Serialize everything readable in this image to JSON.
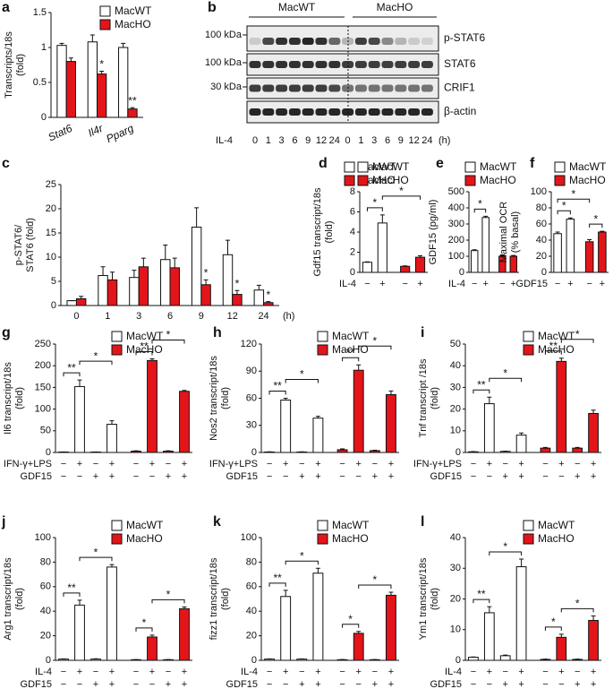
{
  "chart_data": [
    {
      "type": "bar",
      "panel": "a",
      "ylabel": [
        "Transcripts/18s",
        "(fold)"
      ],
      "categories": [
        "Stat6",
        "Il4r",
        "Pparg"
      ],
      "series": [
        {
          "name": "MacWT",
          "color": "#ffffff",
          "values": [
            1.03,
            1.08,
            1.0
          ],
          "errors": [
            0.03,
            0.1,
            0.06
          ]
        },
        {
          "name": "MacHO",
          "color": "#e3151a",
          "values": [
            0.8,
            0.62,
            0.12
          ],
          "errors": [
            0.05,
            0.04,
            0.02
          ]
        }
      ],
      "ylim": [
        0,
        1.5
      ],
      "yticks": [
        0,
        0.5,
        1,
        1.5
      ],
      "annotations": [
        {
          "text": "*",
          "series": 1,
          "index": 1
        },
        {
          "text": "**",
          "series": 1,
          "index": 2
        }
      ]
    },
    {
      "type": "bar",
      "panel": "c",
      "ylabel": [
        "p-STAT6/",
        "STAT6 (fold)"
      ],
      "categories": [
        "0",
        "1",
        "3",
        "6",
        "9",
        "12",
        "24"
      ],
      "xlabel": "(h)",
      "series": [
        {
          "name": "MacWT",
          "color": "#ffffff",
          "values": [
            1,
            6.2,
            5.8,
            9.5,
            16.2,
            10.5,
            3.2
          ],
          "errors": [
            0,
            1.8,
            1.5,
            3,
            4,
            3,
            1
          ]
        },
        {
          "name": "MacHO",
          "color": "#e3151a",
          "values": [
            1.4,
            5.3,
            8,
            7.8,
            4.3,
            2.3,
            0.6
          ],
          "errors": [
            0.5,
            1.6,
            1.8,
            2,
            1,
            0.8,
            0.2
          ]
        }
      ],
      "ylim": [
        0,
        25
      ],
      "yticks": [
        0,
        5,
        10,
        15,
        20,
        25
      ],
      "annotations": [
        {
          "text": "*",
          "series": 1,
          "index": 4
        },
        {
          "text": "*",
          "series": 1,
          "index": 5
        },
        {
          "text": "*",
          "series": 1,
          "index": 6
        }
      ]
    },
    {
      "type": "bar",
      "panel": "d",
      "ylabel": [
        "Gdf15 transcript/18s",
        "(fold)"
      ],
      "series": [
        {
          "name": "MacWT",
          "color": "#ffffff",
          "values": [
            1.0,
            4.9
          ],
          "errors": [
            0.05,
            0.8
          ]
        },
        {
          "name": "MacHO",
          "color": "#e3151a",
          "values": [
            0.6,
            1.5
          ],
          "errors": [
            0.05,
            0.15
          ]
        }
      ],
      "ylim": [
        0,
        8
      ],
      "yticks": [
        0,
        2,
        4,
        6,
        8
      ],
      "rows": [
        {
          "label": "IL-4",
          "signs": [
            "−",
            "+",
            "−",
            "+"
          ]
        }
      ],
      "brackets": [
        {
          "text": "*",
          "from": 0,
          "to": 1
        },
        {
          "text": "*",
          "from": 1,
          "to": 3
        }
      ]
    },
    {
      "type": "bar",
      "panel": "e",
      "ylabel": [
        "GDF15 (pg/ml)"
      ],
      "series": [
        {
          "name": "MacWT",
          "color": "#ffffff",
          "values": [
            135,
            340
          ],
          "errors": [
            5,
            8
          ]
        },
        {
          "name": "MacHO",
          "color": "#e3151a",
          "values": [
            100,
            100
          ],
          "errors": [
            8,
            5
          ]
        }
      ],
      "ylim": [
        0,
        500
      ],
      "yticks": [
        0,
        100,
        200,
        300,
        400,
        500
      ],
      "rows": [
        {
          "label": "IL-4",
          "signs": [
            "−",
            "+",
            "−",
            "+"
          ]
        }
      ],
      "brackets": [
        {
          "text": "*",
          "from": 0,
          "to": 1
        }
      ]
    },
    {
      "type": "bar",
      "panel": "f",
      "ylabel": [
        "Maximal OCR",
        "(% basal)"
      ],
      "series": [
        {
          "name": "MacWT",
          "color": "#ffffff",
          "values": [
            48,
            66
          ],
          "errors": [
            2,
            1.5
          ]
        },
        {
          "name": "MacHO",
          "color": "#e3151a",
          "values": [
            38,
            50
          ],
          "errors": [
            2.5,
            1
          ]
        }
      ],
      "ylim": [
        0,
        100
      ],
      "yticks": [
        0,
        20,
        40,
        60,
        80,
        100
      ],
      "rows": [
        {
          "label": "GDF15",
          "signs": [
            "−",
            "+",
            "−",
            "+"
          ]
        }
      ],
      "brackets": [
        {
          "text": "*",
          "from": 0,
          "to": 1
        },
        {
          "text": "*",
          "from": 2,
          "to": 3
        },
        {
          "text": "*",
          "from": 0,
          "to": 2
        }
      ]
    },
    {
      "type": "bar",
      "panel": "g",
      "ylabel": [
        "Il6 transcript/18s",
        "(fold)"
      ],
      "series": [
        {
          "name": "MacWT",
          "color": "#ffffff",
          "values": [
            1,
            152,
            1,
            65
          ],
          "errors": [
            0.3,
            15,
            0.3,
            8
          ]
        },
        {
          "name": "MacHO",
          "color": "#e3151a",
          "values": [
            3,
            212,
            3,
            141
          ],
          "errors": [
            1,
            4,
            1,
            2
          ]
        }
      ],
      "ylim": [
        0,
        250
      ],
      "yticks": [
        0,
        50,
        100,
        150,
        200,
        250
      ],
      "rows": [
        {
          "label": "IFN-γ+LPS",
          "signs": [
            "−",
            "+",
            "−",
            "+",
            "−",
            "+",
            "−",
            "+"
          ]
        },
        {
          "label": "GDF15",
          "signs": [
            "−",
            "−",
            "+",
            "+",
            "−",
            "−",
            "+",
            "+"
          ]
        }
      ],
      "brackets": [
        {
          "text": "**",
          "from": 0,
          "to": 1
        },
        {
          "text": "*",
          "from": 1,
          "to": 3
        },
        {
          "text": "**",
          "from": 4,
          "to": 5
        },
        {
          "text": "*",
          "from": 5,
          "to": 7
        }
      ]
    },
    {
      "type": "bar",
      "panel": "h",
      "ylabel": [
        "Nos2 transcript/18s",
        "(fold)"
      ],
      "series": [
        {
          "name": "MacWT",
          "color": "#ffffff",
          "values": [
            0.5,
            58,
            0.5,
            38
          ],
          "errors": [
            0.2,
            2,
            0.2,
            2
          ]
        },
        {
          "name": "MacHO",
          "color": "#e3151a",
          "values": [
            3,
            91,
            2,
            64
          ],
          "errors": [
            1,
            6,
            0.5,
            4
          ]
        }
      ],
      "ylim": [
        0,
        120
      ],
      "yticks": [
        0,
        30,
        60,
        90,
        120
      ],
      "rows": [
        {
          "label": "IFN-γ+LPS",
          "signs": [
            "−",
            "+",
            "−",
            "+",
            "−",
            "+",
            "−",
            "+"
          ]
        },
        {
          "label": "GDF15",
          "signs": [
            "−",
            "−",
            "+",
            "+",
            "−",
            "−",
            "+",
            "+"
          ]
        }
      ],
      "brackets": [
        {
          "text": "**",
          "from": 0,
          "to": 1
        },
        {
          "text": "*",
          "from": 1,
          "to": 3
        },
        {
          "text": "**",
          "from": 4,
          "to": 5
        },
        {
          "text": "*",
          "from": 5,
          "to": 7
        }
      ]
    },
    {
      "type": "bar",
      "panel": "i",
      "ylabel": [
        "Tnf transcript /18s",
        "(fold)"
      ],
      "series": [
        {
          "name": "MacWT",
          "color": "#ffffff",
          "values": [
            0.3,
            22.5,
            0.5,
            8
          ],
          "errors": [
            0.1,
            3,
            0.1,
            1
          ]
        },
        {
          "name": "MacHO",
          "color": "#e3151a",
          "values": [
            2,
            42,
            2,
            18
          ],
          "errors": [
            0.3,
            1.5,
            0.3,
            1.5
          ]
        }
      ],
      "ylim": [
        0,
        50
      ],
      "yticks": [
        0,
        10,
        20,
        30,
        40,
        50
      ],
      "rows": [
        {
          "label": "IFN-γ+LPS",
          "signs": [
            "−",
            "+",
            "−",
            "+",
            "−",
            "+",
            "−",
            "+"
          ]
        },
        {
          "label": "GDF15",
          "signs": [
            "−",
            "−",
            "+",
            "+",
            "−",
            "−",
            "+",
            "+"
          ]
        }
      ],
      "brackets": [
        {
          "text": "**",
          "from": 0,
          "to": 1
        },
        {
          "text": "*",
          "from": 1,
          "to": 3
        },
        {
          "text": "**",
          "from": 4,
          "to": 5
        },
        {
          "text": "*",
          "from": 5,
          "to": 7
        }
      ]
    },
    {
      "type": "bar",
      "panel": "j",
      "ylabel": [
        "Arg1 transcript/18s",
        "(fold)"
      ],
      "series": [
        {
          "name": "MacWT",
          "color": "#ffffff",
          "values": [
            1,
            45,
            1,
            76
          ],
          "errors": [
            0.2,
            4,
            0.3,
            2
          ]
        },
        {
          "name": "MacHO",
          "color": "#e3151a",
          "values": [
            0.5,
            19,
            0.5,
            42
          ],
          "errors": [
            0.1,
            1.5,
            0.1,
            1.5
          ]
        }
      ],
      "ylim": [
        0,
        100
      ],
      "yticks": [
        0,
        20,
        40,
        60,
        80,
        100
      ],
      "rows": [
        {
          "label": "IL-4",
          "signs": [
            "−",
            "+",
            "−",
            "+",
            "−",
            "+",
            "−",
            "+"
          ]
        },
        {
          "label": "GDF15",
          "signs": [
            "−",
            "−",
            "+",
            "+",
            "−",
            "−",
            "+",
            "+"
          ]
        }
      ],
      "brackets": [
        {
          "text": "**",
          "from": 0,
          "to": 1
        },
        {
          "text": "*",
          "from": 1,
          "to": 3
        },
        {
          "text": "*",
          "from": 4,
          "to": 5
        },
        {
          "text": "*",
          "from": 5,
          "to": 7
        }
      ]
    },
    {
      "type": "bar",
      "panel": "k",
      "ylabel": [
        "fizz1 transcript/18s",
        "(fold)"
      ],
      "series": [
        {
          "name": "MacWT",
          "color": "#ffffff",
          "values": [
            1,
            52,
            1,
            71
          ],
          "errors": [
            0.2,
            5,
            0.2,
            4
          ]
        },
        {
          "name": "MacHO",
          "color": "#e3151a",
          "values": [
            0.5,
            22,
            0.5,
            53
          ],
          "errors": [
            0.1,
            1.5,
            0.1,
            2.5
          ]
        }
      ],
      "ylim": [
        0,
        100
      ],
      "yticks": [
        0,
        20,
        40,
        60,
        80,
        100
      ],
      "rows": [
        {
          "label": "IL-4",
          "signs": [
            "−",
            "+",
            "−",
            "+",
            "−",
            "+",
            "−",
            "+"
          ]
        },
        {
          "label": "GDF15",
          "signs": [
            "−",
            "−",
            "+",
            "+",
            "−",
            "−",
            "+",
            "+"
          ]
        }
      ],
      "brackets": [
        {
          "text": "**",
          "from": 0,
          "to": 1
        },
        {
          "text": "*",
          "from": 1,
          "to": 3
        },
        {
          "text": "*",
          "from": 4,
          "to": 5
        },
        {
          "text": "*",
          "from": 5,
          "to": 7
        }
      ]
    },
    {
      "type": "bar",
      "panel": "l",
      "ylabel": [
        "Ym1 transcript/18s",
        "(fold)"
      ],
      "series": [
        {
          "name": "MacWT",
          "color": "#ffffff",
          "values": [
            1,
            15.5,
            1.5,
            30.5
          ],
          "errors": [
            0.1,
            2,
            0.2,
            2.5
          ]
        },
        {
          "name": "MacHO",
          "color": "#e3151a",
          "values": [
            0.3,
            7.5,
            0.3,
            13
          ],
          "errors": [
            0.1,
            1,
            0.1,
            1.5
          ]
        }
      ],
      "ylim": [
        0,
        40
      ],
      "yticks": [
        0,
        10,
        20,
        30,
        40
      ],
      "rows": [
        {
          "label": "IL-4",
          "signs": [
            "−",
            "+",
            "−",
            "+",
            "−",
            "+",
            "−",
            "+"
          ]
        },
        {
          "label": "GDF15",
          "signs": [
            "−",
            "−",
            "+",
            "+",
            "−",
            "−",
            "+",
            "+"
          ]
        }
      ],
      "brackets": [
        {
          "text": "**",
          "from": 0,
          "to": 1
        },
        {
          "text": "*",
          "from": 1,
          "to": 3
        },
        {
          "text": "*",
          "from": 4,
          "to": 5
        },
        {
          "text": "*",
          "from": 5,
          "to": 7
        }
      ]
    }
  ],
  "blot": {
    "panel": "b",
    "groups": [
      "MacWT",
      "MacHO"
    ],
    "markers": [
      "100 kDa",
      "100 kDa",
      "30 kDa"
    ],
    "proteins": [
      "p-STAT6",
      "STAT6",
      "CRIF1",
      "β-actin"
    ],
    "treatment": "IL-4",
    "times": [
      "0",
      "1",
      "3",
      "6",
      "9",
      "12",
      "24",
      "0",
      "1",
      "3",
      "6",
      "9",
      "12",
      "24"
    ],
    "unit": "(h)"
  }
}
